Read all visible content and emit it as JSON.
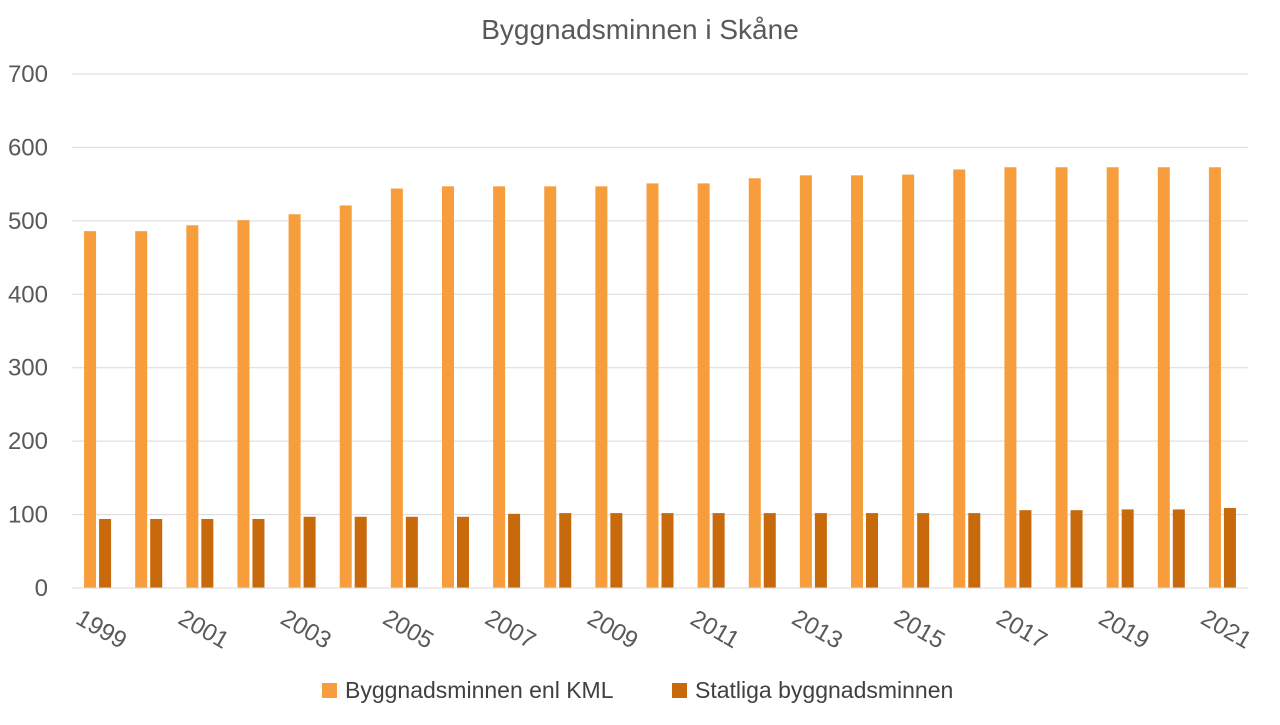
{
  "chart_data": {
    "type": "bar",
    "title": "Byggnadsminnen i Skåne",
    "xlabel": "",
    "ylabel": "",
    "ylim": [
      0,
      700
    ],
    "yticks": [
      0,
      100,
      200,
      300,
      400,
      500,
      600,
      700
    ],
    "grid": true,
    "legend_position": "bottom",
    "categories": [
      "1999",
      "2000",
      "2001",
      "2002",
      "2003",
      "2004",
      "2005",
      "2006",
      "2007",
      "2008",
      "2009",
      "2010",
      "2011",
      "2012",
      "2013",
      "2014",
      "2015",
      "2016",
      "2017",
      "2018",
      "2019",
      "2020",
      "2021"
    ],
    "x_tick_labels": [
      "1999",
      "2001",
      "2003",
      "2005",
      "2007",
      "2009",
      "2011",
      "2013",
      "2015",
      "2017",
      "2019",
      "2021"
    ],
    "series": [
      {
        "name": "Byggnadsminnen enl KML",
        "color": "#f79d3c",
        "values": [
          486,
          486,
          494,
          501,
          509,
          521,
          544,
          547,
          547,
          547,
          547,
          551,
          551,
          558,
          562,
          562,
          563,
          570,
          573,
          573,
          573,
          573,
          573
        ]
      },
      {
        "name": "Statliga byggnadsminnen",
        "color": "#c8690c",
        "values": [
          94,
          94,
          94,
          94,
          97,
          97,
          97,
          97,
          101,
          102,
          102,
          102,
          102,
          102,
          102,
          102,
          102,
          102,
          106,
          106,
          107,
          107,
          109
        ]
      }
    ]
  }
}
